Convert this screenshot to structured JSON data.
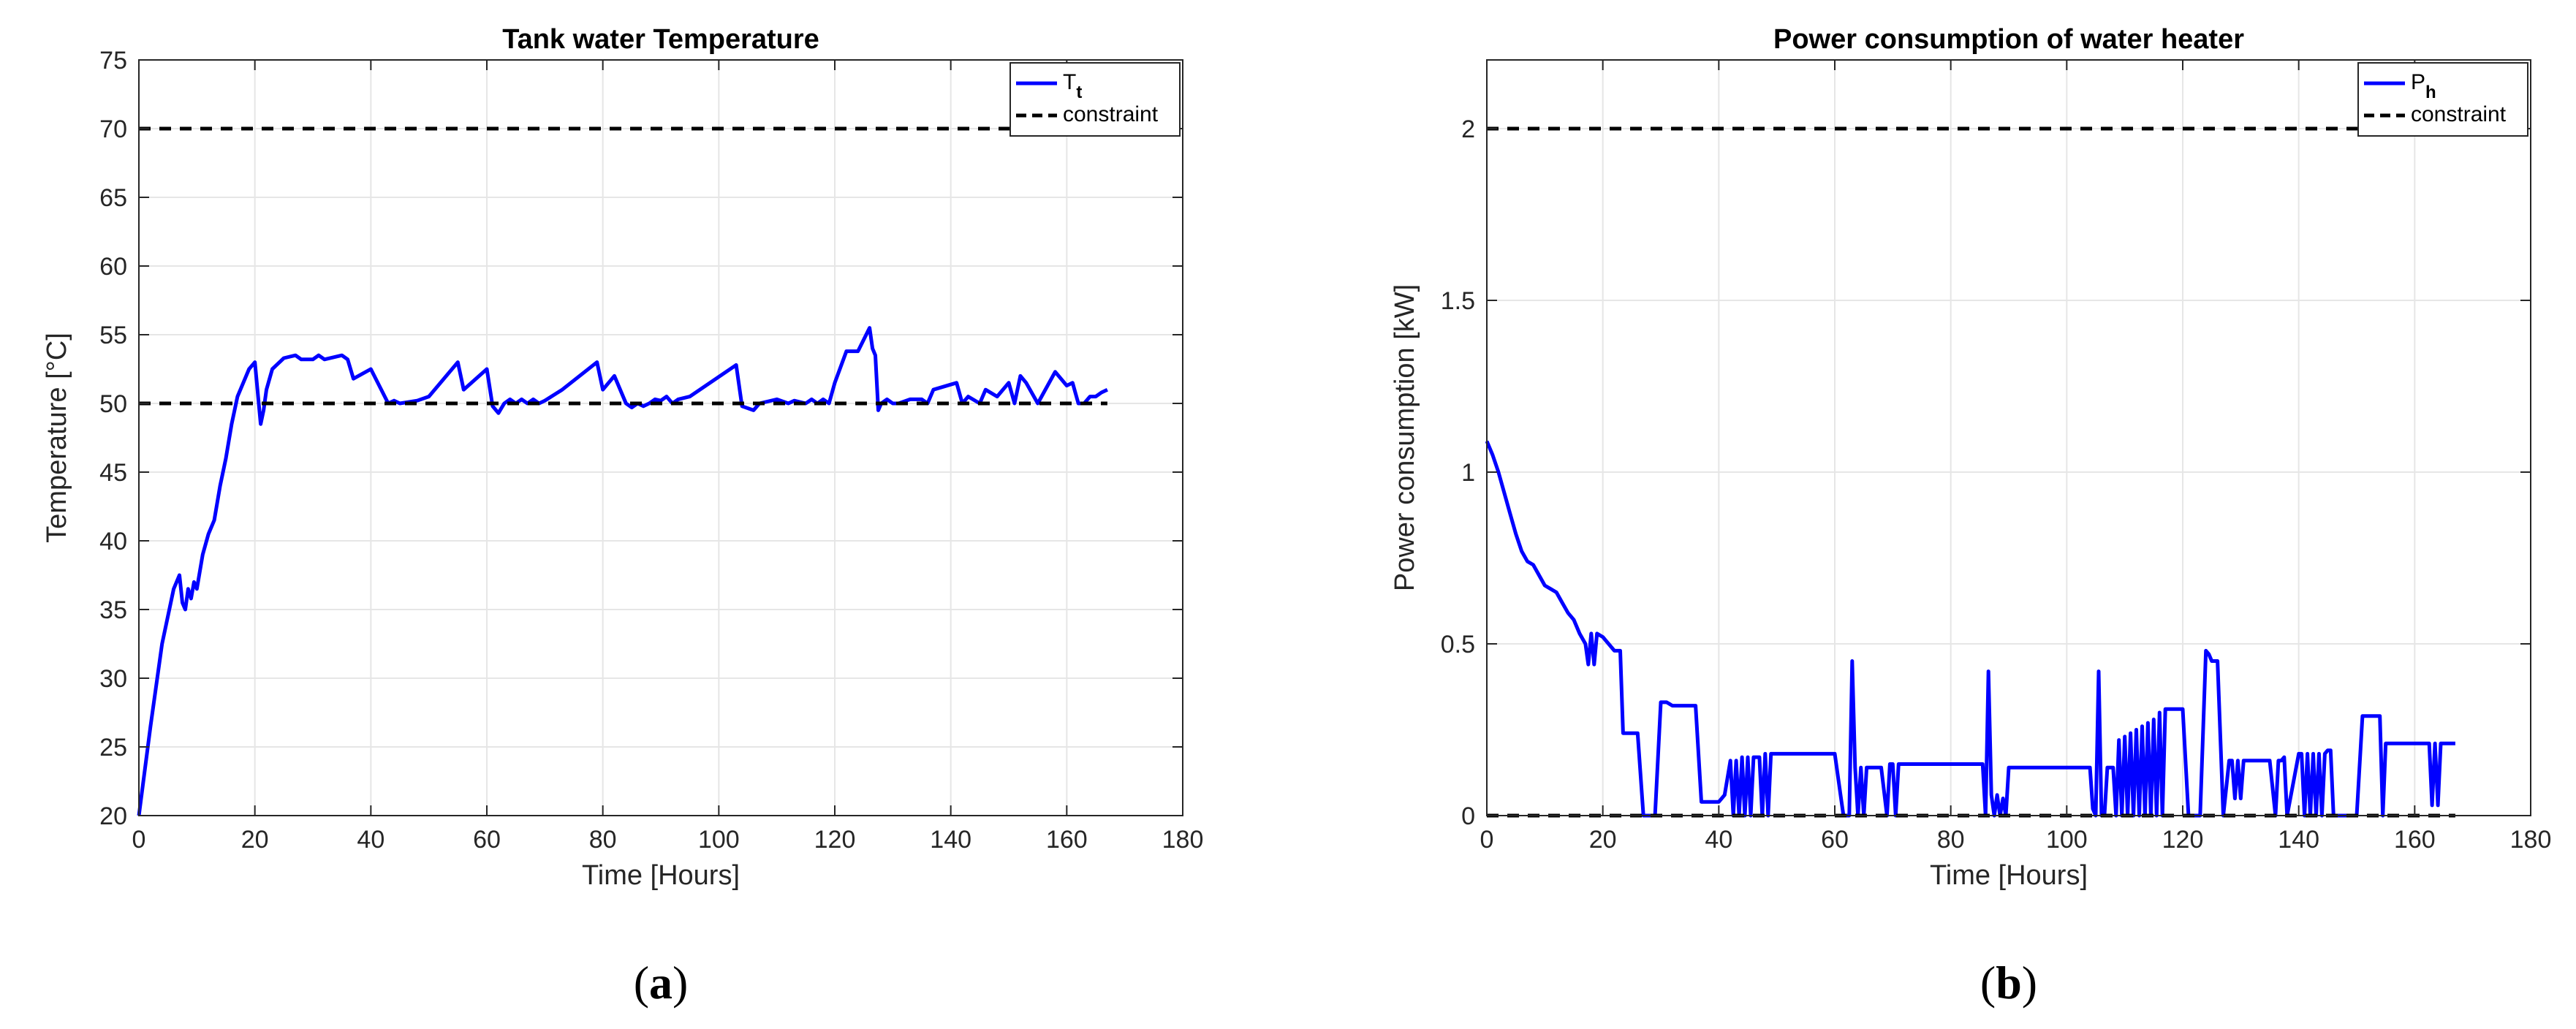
{
  "chart_data": [
    {
      "type": "line",
      "panel_label_pre": "(",
      "panel_label": "a",
      "panel_label_post": ")",
      "title": "Tank water Temperature",
      "xlabel": "Time [Hours]",
      "ylabel": "Temperature [°C]",
      "xlim": [
        0,
        180
      ],
      "ylim": [
        20,
        75
      ],
      "xticks": [
        0,
        20,
        40,
        60,
        80,
        100,
        120,
        140,
        160,
        180
      ],
      "yticks": [
        20,
        25,
        30,
        35,
        40,
        45,
        50,
        55,
        60,
        65,
        70,
        75
      ],
      "grid": true,
      "legend_position": "top-right",
      "legend": [
        {
          "name": "T",
          "sub": "t",
          "color": "#0000ff",
          "style": "solid"
        },
        {
          "name": "constraint",
          "sub": "",
          "color": "#000000",
          "style": "dashed"
        }
      ],
      "series": [
        {
          "color": "#0000ff",
          "style": "solid",
          "x": [
            0,
            2,
            4,
            6,
            7,
            7.5,
            8,
            8.5,
            9,
            9.5,
            10,
            11,
            12,
            13,
            14,
            15,
            16,
            17,
            18,
            19,
            20,
            21,
            21.5,
            22,
            23,
            25,
            27,
            28,
            30,
            31,
            32,
            35,
            36,
            37,
            40,
            43,
            44,
            45,
            48,
            50,
            55,
            56,
            60,
            61,
            62,
            63,
            64,
            65,
            66,
            67,
            68,
            69,
            70,
            73,
            79,
            80,
            82,
            84,
            85,
            86,
            87,
            88,
            89,
            90,
            91,
            92,
            93,
            95,
            103,
            104,
            106,
            107,
            110,
            112,
            113,
            115,
            116,
            117,
            118,
            119,
            120,
            122,
            124,
            126,
            126.5,
            127,
            127.5,
            128,
            129,
            130,
            131,
            133,
            135,
            136,
            137,
            141,
            142,
            143,
            145,
            146,
            148,
            150,
            151,
            152,
            153,
            155,
            158,
            160,
            161,
            162,
            163,
            164,
            165,
            166,
            167
          ],
          "y": [
            20,
            26.5,
            32.5,
            36.5,
            37.5,
            35.5,
            35,
            36.5,
            35.8,
            37,
            36.5,
            39,
            40.5,
            41.5,
            44,
            46,
            48.5,
            50.5,
            51.5,
            52.5,
            53,
            48.5,
            49.5,
            51,
            52.5,
            53.3,
            53.5,
            53.2,
            53.2,
            53.5,
            53.2,
            53.5,
            53.2,
            51.8,
            52.5,
            50,
            50.2,
            50,
            50.2,
            50.5,
            53,
            51,
            52.5,
            49.8,
            49.3,
            50,
            50.3,
            50,
            50.3,
            50,
            50.3,
            50,
            50.2,
            51,
            53,
            51,
            52,
            50,
            49.7,
            50,
            49.8,
            50,
            50.3,
            50.2,
            50.5,
            50,
            50.3,
            50.5,
            52.8,
            49.8,
            49.5,
            50,
            50.3,
            50,
            50.2,
            50,
            50.3,
            50,
            50.3,
            50,
            51.5,
            53.8,
            53.8,
            55.5,
            54,
            53.5,
            49.5,
            50,
            50.3,
            50,
            50,
            50.3,
            50.3,
            50,
            51,
            51.5,
            50,
            50.5,
            50,
            51,
            50.5,
            51.5,
            50,
            52,
            51.5,
            50,
            52.3,
            51.3,
            51.5,
            50,
            50,
            50.5,
            50.5,
            50.8,
            51
          ]
        },
        {
          "color": "#000000",
          "style": "dashed",
          "x": [
            0,
            167
          ],
          "y": [
            50,
            50
          ]
        },
        {
          "color": "#000000",
          "style": "dashed",
          "x": [
            0,
            180
          ],
          "y": [
            70,
            70
          ]
        }
      ]
    },
    {
      "type": "line",
      "panel_label_pre": "(",
      "panel_label": "b",
      "panel_label_post": ")",
      "title": "Power consumption of water heater",
      "xlabel": "Time [Hours]",
      "ylabel": "Power consumption [kW]",
      "xlim": [
        0,
        180
      ],
      "ylim": [
        0,
        2.2
      ],
      "xticks": [
        0,
        20,
        40,
        60,
        80,
        100,
        120,
        140,
        160,
        180
      ],
      "yticks": [
        0,
        0.5,
        1,
        1.5,
        2
      ],
      "ytick_labels": [
        "0",
        "0.5",
        "1",
        "1.5",
        "2"
      ],
      "grid": true,
      "legend_position": "top-right",
      "legend": [
        {
          "name": "P",
          "sub": "h",
          "color": "#0000ff",
          "style": "solid"
        },
        {
          "name": "constraint",
          "sub": "",
          "color": "#000000",
          "style": "dashed"
        }
      ],
      "series": [
        {
          "color": "#0000ff",
          "style": "solid",
          "x": [
            0,
            1,
            2,
            3,
            4,
            5,
            6,
            7,
            8,
            9,
            10,
            11,
            12,
            13,
            14,
            15,
            16,
            17,
            17.5,
            18,
            18.5,
            19,
            20,
            21,
            22,
            23,
            23.5,
            26,
            27,
            28,
            29,
            30,
            31,
            32,
            35,
            36,
            37,
            40,
            41,
            42,
            42.5,
            43,
            43.5,
            44,
            44.5,
            45,
            45.5,
            46,
            47,
            47.5,
            48,
            48.5,
            49,
            50,
            52,
            55,
            58,
            60,
            61,
            61.5,
            62,
            62.5,
            63,
            63.5,
            64,
            64.5,
            65,
            65.5,
            66,
            67,
            68,
            69,
            69.5,
            70,
            70.5,
            71,
            75,
            80,
            85,
            85.5,
            86,
            86.5,
            87,
            87.5,
            88,
            88.5,
            89,
            89.5,
            90,
            90.5,
            91,
            95,
            100,
            103,
            104,
            104.5,
            105,
            105.5,
            106,
            106.5,
            107,
            108,
            108.5,
            109,
            109.5,
            110,
            110.5,
            111,
            111.5,
            112,
            112.5,
            113,
            113.5,
            114,
            114.5,
            115,
            115.5,
            116,
            116.5,
            117,
            117.5,
            118,
            118.5,
            119,
            119.5,
            120,
            121,
            123,
            124,
            124.5,
            125,
            126,
            127,
            128,
            128.5,
            129,
            129.5,
            130,
            130.5,
            131,
            131.5,
            132,
            135,
            136,
            136.5,
            137,
            137.5,
            138,
            140,
            140.5,
            141,
            141.5,
            142,
            142.5,
            143,
            143.5,
            144,
            144.5,
            145,
            145.5,
            146,
            149,
            150,
            151,
            153,
            154,
            154.5,
            155,
            157,
            160,
            162,
            162.5,
            163,
            163.5,
            164,
            164.5,
            165,
            167
          ],
          "y": [
            1.09,
            1.05,
            1.0,
            0.94,
            0.88,
            0.82,
            0.77,
            0.74,
            0.73,
            0.7,
            0.67,
            0.66,
            0.65,
            0.62,
            0.59,
            0.57,
            0.53,
            0.5,
            0.44,
            0.53,
            0.44,
            0.53,
            0.52,
            0.5,
            0.48,
            0.48,
            0.24,
            0.24,
            0.0,
            0.0,
            0.0,
            0.33,
            0.33,
            0.32,
            0.32,
            0.32,
            0.04,
            0.04,
            0.06,
            0.16,
            0.0,
            0.16,
            0.0,
            0.17,
            0.0,
            0.17,
            0.0,
            0.17,
            0.17,
            0.0,
            0.18,
            0.0,
            0.18,
            0.18,
            0.18,
            0.18,
            0.18,
            0.18,
            0.06,
            0.0,
            0.0,
            0.0,
            0.45,
            0.14,
            0.0,
            0.14,
            0.0,
            0.14,
            0.14,
            0.14,
            0.14,
            0.0,
            0.15,
            0.15,
            0.0,
            0.15,
            0.15,
            0.15,
            0.15,
            0.15,
            0.0,
            0.42,
            0.06,
            0.0,
            0.06,
            0.0,
            0.05,
            0.0,
            0.14,
            0.14,
            0.14,
            0.14,
            0.14,
            0.14,
            0.14,
            0.02,
            0.0,
            0.42,
            0.0,
            0.0,
            0.14,
            0.14,
            0.0,
            0.22,
            0.0,
            0.23,
            0.0,
            0.24,
            0.0,
            0.25,
            0.0,
            0.26,
            0.0,
            0.27,
            0.0,
            0.28,
            0.0,
            0.3,
            0.0,
            0.31,
            0.31,
            0.31,
            0.31,
            0.31,
            0.31,
            0.31,
            0.0,
            0.0,
            0.48,
            0.47,
            0.45,
            0.45,
            0.0,
            0.16,
            0.16,
            0.05,
            0.16,
            0.05,
            0.16,
            0.16,
            0.16,
            0.16,
            0.16,
            0.0,
            0.16,
            0.16,
            0.17,
            0.0,
            0.18,
            0.18,
            0.0,
            0.18,
            0.0,
            0.18,
            0.0,
            0.18,
            0.0,
            0.18,
            0.19,
            0.19,
            0.0,
            0.0,
            0.0,
            0.29,
            0.29,
            0.29,
            0.0,
            0.21,
            0.21,
            0.21,
            0.21,
            0.21,
            0.03,
            0.21,
            0.03,
            0.21,
            0.21,
            0.21
          ]
        },
        {
          "color": "#000000",
          "style": "dashed",
          "x": [
            0,
            167
          ],
          "y": [
            0,
            0
          ]
        },
        {
          "color": "#000000",
          "style": "dashed",
          "x": [
            0,
            180
          ],
          "y": [
            2,
            2
          ]
        }
      ]
    }
  ]
}
